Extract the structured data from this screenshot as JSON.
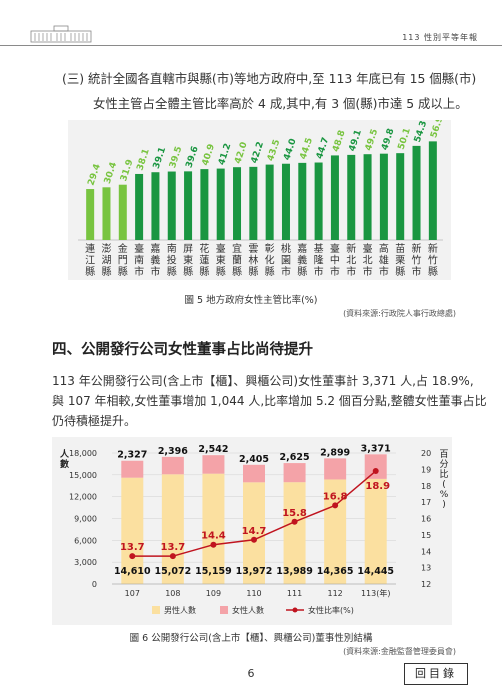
{
  "header": {
    "title": "113 性別平等年報"
  },
  "intro": {
    "line1": "(三) 統計全國各直轄市與縣(市)等地方政府中,至 113 年底已有 15 個縣(市)",
    "line2": "女性主管占全體主管比率高於 4 成,其中,有 3 個(縣)市達 5 成以上。"
  },
  "colors": {
    "dark_green": "#1a9641",
    "light_green": "#78c440",
    "bar_yellow": "#fbe0a0",
    "bar_pink": "#f4a3a8",
    "line_red": "#c0141f"
  },
  "chart_data": [
    {
      "type": "bar",
      "categories": [
        "連江縣",
        "澎湖縣",
        "金門縣",
        "臺南市",
        "嘉義市",
        "南投縣",
        "屏東縣",
        "花蓮縣",
        "臺東縣",
        "宜蘭縣",
        "雲林縣",
        "彰化縣",
        "桃園市",
        "嘉義縣",
        "基隆市",
        "臺中市",
        "新北市",
        "臺北市",
        "高雄市",
        "苗栗縣",
        "新竹市",
        "新竹縣"
      ],
      "values": [
        29.4,
        30.4,
        31.9,
        38.1,
        39.1,
        39.5,
        39.6,
        40.9,
        41.2,
        42.0,
        42.2,
        43.5,
        44.0,
        44.5,
        44.7,
        48.8,
        49.1,
        49.5,
        49.8,
        50.1,
        54.3,
        56.9
      ],
      "title": "圖 5 地方政府女性主管比率(%)",
      "source": "(資料來源:行政院人事行政總處)"
    },
    {
      "type": "bar",
      "categories": [
        "107",
        "108",
        "109",
        "110",
        "111",
        "112",
        "113(年)"
      ],
      "series": [
        {
          "name": "男性人數",
          "values": [
            14610,
            15072,
            15159,
            13972,
            13989,
            14365,
            14445
          ]
        },
        {
          "name": "女性人數",
          "values": [
            2327,
            2396,
            2542,
            2405,
            2625,
            2899,
            3371
          ]
        },
        {
          "name": "女性比率(%)",
          "values": [
            13.7,
            13.7,
            14.4,
            14.7,
            15.8,
            16.8,
            18.9
          ]
        }
      ],
      "value_labels": {
        "male": [
          "14,610",
          "15,072",
          "15,159",
          "13,972",
          "13,989",
          "14,365",
          "14,445"
        ],
        "female": [
          "2,327",
          "2,396",
          "2,542",
          "2,405",
          "2,625",
          "2,899",
          "3,371"
        ],
        "ratio": [
          "13.7",
          "13.7",
          "14.4",
          "14.7",
          "15.8",
          "16.8",
          "18.9"
        ]
      },
      "ylabel": "人數",
      "y2label": "百分比(%)",
      "ylim": [
        0,
        18000
      ],
      "y2lim": [
        12,
        20
      ],
      "yticks": [
        "0",
        "3,000",
        "6,000",
        "9,000",
        "12,000",
        "15,000",
        "18,000"
      ],
      "y2ticks": [
        "12",
        "13",
        "14",
        "15",
        "16",
        "17",
        "18",
        "19",
        "20"
      ],
      "legend": [
        "男性人數",
        "女性人數",
        "女性比率(%)"
      ],
      "title": "圖 6 公開發行公司(含上市【櫃】、興櫃公司)董事性別結構",
      "source": "(資料來源:金融監督管理委員會)"
    }
  ],
  "section": {
    "title": "四、公開發行公司女性董事占比尚待提升",
    "p1": "113 年公開發行公司(含上市【櫃】、興櫃公司)女性董事計 3,371 人,占 18.9%,",
    "p2": "與 107 年相較,女性董事增加 1,044 人,比率增加 5.2 個百分點,整體女性董事占比",
    "p3": "仍待積極提升。"
  },
  "footer": {
    "page": "6",
    "toc": "回目錄"
  }
}
